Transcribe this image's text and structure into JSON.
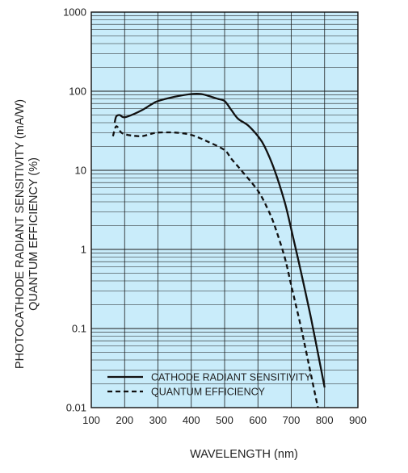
{
  "colors": {
    "plot_background": "#c9ecfa",
    "grid": "#1a1a1a",
    "series": "#111111",
    "text": "#222222"
  },
  "chart_data": {
    "type": "line",
    "title": "",
    "xlabel": "WAVELENGTH (nm)",
    "ylabel_lines": [
      "PHOTOCATHODE RADIANT SENSITIVITY (mA/W)",
      "QUANTUM EFFICIENCY (%)"
    ],
    "xlim": [
      100,
      900
    ],
    "ylim": [
      0.01,
      1000
    ],
    "yscale": "log",
    "grid": true,
    "x_ticks": [
      100,
      200,
      300,
      400,
      500,
      600,
      700,
      800,
      900
    ],
    "x_tick_labels": [
      "100",
      "200",
      "300",
      "400",
      "500",
      "600",
      "700",
      "800",
      "900"
    ],
    "y_ticks": [
      0.01,
      0.1,
      1,
      10,
      100,
      1000
    ],
    "y_tick_labels": [
      "0.01",
      "0.1",
      "1",
      "10",
      "100",
      "1000"
    ],
    "legend": {
      "position": "bottom-left"
    },
    "series": [
      {
        "name": "CATHODE RADIANT SENSITIVITY",
        "style": "solid",
        "x": [
          170,
          175,
          185,
          195,
          210,
          250,
          280,
          300,
          350,
          400,
          430,
          460,
          480,
          500,
          520,
          540,
          570,
          600,
          620,
          650,
          680,
          700,
          730,
          760,
          800
        ],
        "y": [
          40,
          48,
          50,
          47,
          48,
          57,
          68,
          75,
          85,
          92,
          92,
          85,
          80,
          75,
          58,
          45,
          37,
          27,
          20,
          10,
          4,
          1.8,
          0.5,
          0.13,
          0.018
        ]
      },
      {
        "name": "QUANTUM EFFICIENCY",
        "style": "dashed",
        "x": [
          165,
          175,
          190,
          210,
          250,
          280,
          300,
          350,
          400,
          450,
          500,
          520,
          550,
          600,
          630,
          650,
          680,
          700,
          730,
          760,
          780
        ],
        "y": [
          27,
          36,
          30,
          28,
          27,
          29,
          30,
          30,
          28,
          23,
          18,
          14,
          10,
          5.5,
          3.2,
          2,
          0.8,
          0.35,
          0.1,
          0.025,
          0.01
        ]
      }
    ]
  }
}
